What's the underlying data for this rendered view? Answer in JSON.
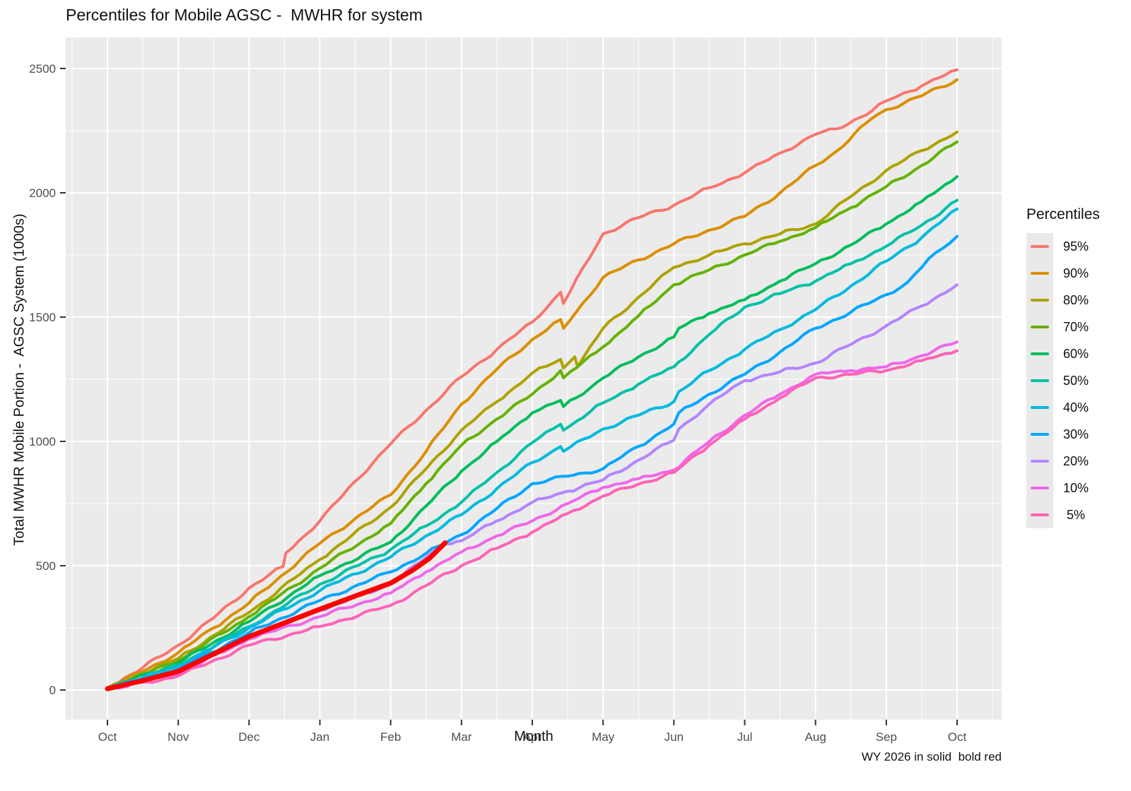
{
  "title": "Percentiles for Mobile AGSC -  MWHR for system",
  "caption": "WY 2026 in solid  bold red",
  "axes": {
    "x": {
      "label": "Month",
      "ticks": [
        "Oct",
        "Nov",
        "Dec",
        "Jan",
        "Feb",
        "Mar",
        "Apr",
        "May",
        "Jun",
        "Jul",
        "Aug",
        "Sep",
        "Oct"
      ]
    },
    "y": {
      "label": "Total MWHR Mobile Portion -  AGSC System (1000s)",
      "ticks": [
        0,
        500,
        1000,
        1500,
        2000,
        2500
      ],
      "range": [
        0,
        2500
      ]
    }
  },
  "legend": {
    "title": "Percentiles",
    "items": [
      {
        "label": "95%",
        "color": "#F8766D"
      },
      {
        "label": "90%",
        "color": "#DB8E00"
      },
      {
        "label": "80%",
        "color": "#AEA200"
      },
      {
        "label": "70%",
        "color": "#64B200"
      },
      {
        "label": "60%",
        "color": "#00BD5C"
      },
      {
        "label": "50%",
        "color": "#00C1A7"
      },
      {
        "label": "40%",
        "color": "#00BADE"
      },
      {
        "label": "30%",
        "color": "#00A6FF"
      },
      {
        "label": "20%",
        "color": "#B385FF"
      },
      {
        "label": "10%",
        "color": "#EF67EB"
      },
      {
        "label": " 5%",
        "color": "#FF63B6"
      }
    ]
  },
  "colors": {
    "panel_bg": "#EBEBEB",
    "grid": "#FFFFFF",
    "tick_text": "#4D4D4D",
    "tick_mark": "#333333",
    "text": "#111111",
    "highlight": "#FF0000"
  },
  "chart_data": {
    "type": "line",
    "title": "Percentiles for Mobile AGSC -  MWHR for system",
    "xlabel": "Month",
    "ylabel": "Total MWHR Mobile Portion -  AGSC System (1000s)",
    "x_unit": "months_since_Oct_1 (0=Oct ... 12=Oct next year)",
    "ylim": [
      0,
      2500
    ],
    "grid": true,
    "legend_position": "right",
    "annotation": "WY 2026 in solid  bold red",
    "series": [
      {
        "name": "95%",
        "color": "#F8766D",
        "width": 4,
        "points": [
          [
            0,
            10
          ],
          [
            0.5,
            90
          ],
          [
            1,
            180
          ],
          [
            1.5,
            290
          ],
          [
            2,
            410
          ],
          [
            2.48,
            497
          ],
          [
            2.52,
            551
          ],
          [
            3,
            680
          ],
          [
            3.5,
            840
          ],
          [
            4,
            990
          ],
          [
            4.5,
            1125
          ],
          [
            5,
            1260
          ],
          [
            5.5,
            1370
          ],
          [
            6,
            1480
          ],
          [
            6.4,
            1600
          ],
          [
            6.44,
            1555
          ],
          [
            7,
            1835
          ],
          [
            7.5,
            1900
          ],
          [
            8,
            1950
          ],
          [
            8.5,
            2020
          ],
          [
            9,
            2080
          ],
          [
            9.5,
            2160
          ],
          [
            10,
            2235
          ],
          [
            10.3,
            2257
          ],
          [
            10.8,
            2330
          ],
          [
            11,
            2370
          ],
          [
            11.5,
            2430
          ],
          [
            12,
            2495
          ]
        ]
      },
      {
        "name": "90%",
        "color": "#DB8E00",
        "width": 4,
        "points": [
          [
            0,
            8
          ],
          [
            0.5,
            75
          ],
          [
            1,
            150
          ],
          [
            1.5,
            250
          ],
          [
            2,
            350
          ],
          [
            3,
            590
          ],
          [
            3.5,
            690
          ],
          [
            4,
            785
          ],
          [
            4.5,
            960
          ],
          [
            5,
            1150
          ],
          [
            5.5,
            1290
          ],
          [
            6,
            1410
          ],
          [
            6.4,
            1490
          ],
          [
            6.44,
            1455
          ],
          [
            7,
            1660
          ],
          [
            7.5,
            1730
          ],
          [
            8,
            1795
          ],
          [
            8.5,
            1850
          ],
          [
            9,
            1905
          ],
          [
            9.5,
            2000
          ],
          [
            10,
            2110
          ],
          [
            10.3,
            2168
          ],
          [
            10.8,
            2300
          ],
          [
            11,
            2335
          ],
          [
            11.5,
            2390
          ],
          [
            12,
            2455
          ]
        ]
      },
      {
        "name": "80%",
        "color": "#AEA200",
        "width": 4,
        "points": [
          [
            0,
            7
          ],
          [
            1,
            127
          ],
          [
            2,
            312
          ],
          [
            3,
            525
          ],
          [
            4,
            735
          ],
          [
            4.5,
            890
          ],
          [
            5,
            1045
          ],
          [
            5.5,
            1160
          ],
          [
            6,
            1275
          ],
          [
            6.4,
            1330
          ],
          [
            6.44,
            1295
          ],
          [
            6.6,
            1340
          ],
          [
            6.64,
            1300
          ],
          [
            7,
            1455
          ],
          [
            7.5,
            1580
          ],
          [
            8,
            1700
          ],
          [
            8.5,
            1750
          ],
          [
            9,
            1795
          ],
          [
            9.5,
            1835
          ],
          [
            10,
            1875
          ],
          [
            10.5,
            1985
          ],
          [
            11,
            2090
          ],
          [
            11.5,
            2170
          ],
          [
            12,
            2245
          ]
        ]
      },
      {
        "name": "70%",
        "color": "#64B200",
        "width": 4,
        "points": [
          [
            0,
            7
          ],
          [
            1,
            117
          ],
          [
            2,
            295
          ],
          [
            3,
            490
          ],
          [
            4,
            670
          ],
          [
            4.5,
            830
          ],
          [
            5,
            985
          ],
          [
            5.5,
            1090
          ],
          [
            6,
            1190
          ],
          [
            6.4,
            1285
          ],
          [
            6.44,
            1255
          ],
          [
            7,
            1380
          ],
          [
            7.5,
            1505
          ],
          [
            8,
            1630
          ],
          [
            8.5,
            1690
          ],
          [
            9,
            1750
          ],
          [
            9.5,
            1805
          ],
          [
            10,
            1860
          ],
          [
            10.5,
            1940
          ],
          [
            11,
            2025
          ],
          [
            11.5,
            2110
          ],
          [
            12,
            2205
          ]
        ]
      },
      {
        "name": "60%",
        "color": "#00BD5C",
        "width": 4,
        "points": [
          [
            0,
            6
          ],
          [
            1,
            108
          ],
          [
            2,
            275
          ],
          [
            3,
            460
          ],
          [
            4,
            595
          ],
          [
            4.5,
            740
          ],
          [
            5,
            880
          ],
          [
            5.5,
            1000
          ],
          [
            6,
            1115
          ],
          [
            6.4,
            1165
          ],
          [
            6.44,
            1140
          ],
          [
            7,
            1255
          ],
          [
            7.5,
            1340
          ],
          [
            8,
            1420
          ],
          [
            8.07,
            1455
          ],
          [
            8.5,
            1515
          ],
          [
            9,
            1570
          ],
          [
            9.5,
            1645
          ],
          [
            10,
            1715
          ],
          [
            10.5,
            1790
          ],
          [
            11,
            1875
          ],
          [
            11.5,
            1965
          ],
          [
            12,
            2065
          ]
        ]
      },
      {
        "name": "50%",
        "color": "#00C1A7",
        "width": 4,
        "points": [
          [
            0,
            5
          ],
          [
            1,
            98
          ],
          [
            2,
            255
          ],
          [
            3,
            425
          ],
          [
            4,
            565
          ],
          [
            4.5,
            660
          ],
          [
            5,
            755
          ],
          [
            5.5,
            875
          ],
          [
            6,
            995
          ],
          [
            6.4,
            1069
          ],
          [
            6.44,
            1045
          ],
          [
            7,
            1155
          ],
          [
            7.5,
            1230
          ],
          [
            8,
            1300
          ],
          [
            8.07,
            1320
          ],
          [
            8.5,
            1430
          ],
          [
            9,
            1540
          ],
          [
            9.5,
            1595
          ],
          [
            10,
            1645
          ],
          [
            10.5,
            1715
          ],
          [
            11,
            1785
          ],
          [
            11.5,
            1870
          ],
          [
            12,
            1970
          ]
        ]
      },
      {
        "name": "40%",
        "color": "#00BADE",
        "width": 4,
        "points": [
          [
            0,
            5
          ],
          [
            1,
            94
          ],
          [
            2,
            250
          ],
          [
            3,
            400
          ],
          [
            4,
            535
          ],
          [
            4.5,
            620
          ],
          [
            5,
            705
          ],
          [
            5.5,
            810
          ],
          [
            6,
            915
          ],
          [
            6.4,
            979
          ],
          [
            6.44,
            960
          ],
          [
            7,
            1050
          ],
          [
            7.5,
            1105
          ],
          [
            8,
            1160
          ],
          [
            8.07,
            1200
          ],
          [
            8.5,
            1285
          ],
          [
            9,
            1370
          ],
          [
            9.5,
            1450
          ],
          [
            10,
            1530
          ],
          [
            10.5,
            1625
          ],
          [
            11,
            1725
          ],
          [
            11.5,
            1820
          ],
          [
            12,
            1935
          ]
        ]
      },
      {
        "name": "30%",
        "color": "#00A6FF",
        "width": 4,
        "points": [
          [
            0,
            4
          ],
          [
            1,
            84
          ],
          [
            2,
            230
          ],
          [
            3,
            360
          ],
          [
            4,
            475
          ],
          [
            4.5,
            550
          ],
          [
            5,
            625
          ],
          [
            5.5,
            730
          ],
          [
            6,
            830
          ],
          [
            6.5,
            860
          ],
          [
            7,
            890
          ],
          [
            7.5,
            980
          ],
          [
            8,
            1070
          ],
          [
            8.07,
            1115
          ],
          [
            8.5,
            1190
          ],
          [
            9,
            1270
          ],
          [
            9.5,
            1360
          ],
          [
            10,
            1455
          ],
          [
            10.5,
            1520
          ],
          [
            11,
            1590
          ],
          [
            11.3,
            1640
          ],
          [
            11.7,
            1760
          ],
          [
            12,
            1825
          ]
        ]
      },
      {
        "name": "20%",
        "color": "#B385FF",
        "width": 4,
        "points": [
          [
            0,
            4
          ],
          [
            1,
            70
          ],
          [
            2,
            212
          ],
          [
            3,
            320
          ],
          [
            4,
            425
          ],
          [
            4.77,
            590
          ],
          [
            5,
            600
          ],
          [
            5.5,
            680
          ],
          [
            6,
            755
          ],
          [
            6.5,
            800
          ],
          [
            7,
            845
          ],
          [
            7.5,
            925
          ],
          [
            8,
            1005
          ],
          [
            8.07,
            1050
          ],
          [
            8.5,
            1150
          ],
          [
            9,
            1245
          ],
          [
            9.5,
            1280
          ],
          [
            10,
            1315
          ],
          [
            10.5,
            1390
          ],
          [
            11,
            1465
          ],
          [
            11.5,
            1545
          ],
          [
            12,
            1630
          ]
        ]
      },
      {
        "name": "10%",
        "color": "#EF67EB",
        "width": 4,
        "points": [
          [
            0,
            3
          ],
          [
            1,
            66
          ],
          [
            2,
            205
          ],
          [
            3,
            295
          ],
          [
            4,
            390
          ],
          [
            4.5,
            475
          ],
          [
            5,
            555
          ],
          [
            5.5,
            620
          ],
          [
            6,
            680
          ],
          [
            6.5,
            750
          ],
          [
            7,
            815
          ],
          [
            7.5,
            850
          ],
          [
            8,
            885
          ],
          [
            8.5,
            1000
          ],
          [
            9,
            1105
          ],
          [
            9.5,
            1190
          ],
          [
            10,
            1270
          ],
          [
            10.5,
            1285
          ],
          [
            11,
            1300
          ],
          [
            11.5,
            1345
          ],
          [
            12,
            1400
          ]
        ]
      },
      {
        "name": "5%",
        "color": "#FF63B6",
        "width": 4,
        "points": [
          [
            0,
            2
          ],
          [
            1,
            56
          ],
          [
            2,
            180
          ],
          [
            3,
            255
          ],
          [
            4,
            340
          ],
          [
            4.5,
            420
          ],
          [
            5,
            500
          ],
          [
            5.5,
            570
          ],
          [
            6,
            635
          ],
          [
            6.5,
            710
          ],
          [
            7,
            780
          ],
          [
            7.5,
            828
          ],
          [
            8,
            875
          ],
          [
            8.5,
            985
          ],
          [
            9,
            1090
          ],
          [
            9.5,
            1175
          ],
          [
            10,
            1255
          ],
          [
            10.5,
            1270
          ],
          [
            11,
            1285
          ],
          [
            11.5,
            1325
          ],
          [
            12,
            1365
          ]
        ]
      },
      {
        "name": "WY 2026",
        "color": "#FF0000",
        "width": 7,
        "highlight": true,
        "points": [
          [
            0,
            5
          ],
          [
            0.5,
            38
          ],
          [
            1,
            75
          ],
          [
            1.5,
            145
          ],
          [
            2,
            215
          ],
          [
            2.5,
            270
          ],
          [
            3,
            325
          ],
          [
            3.5,
            378
          ],
          [
            4,
            430
          ],
          [
            4.3,
            480
          ],
          [
            4.55,
            530
          ],
          [
            4.77,
            592
          ]
        ]
      }
    ]
  }
}
